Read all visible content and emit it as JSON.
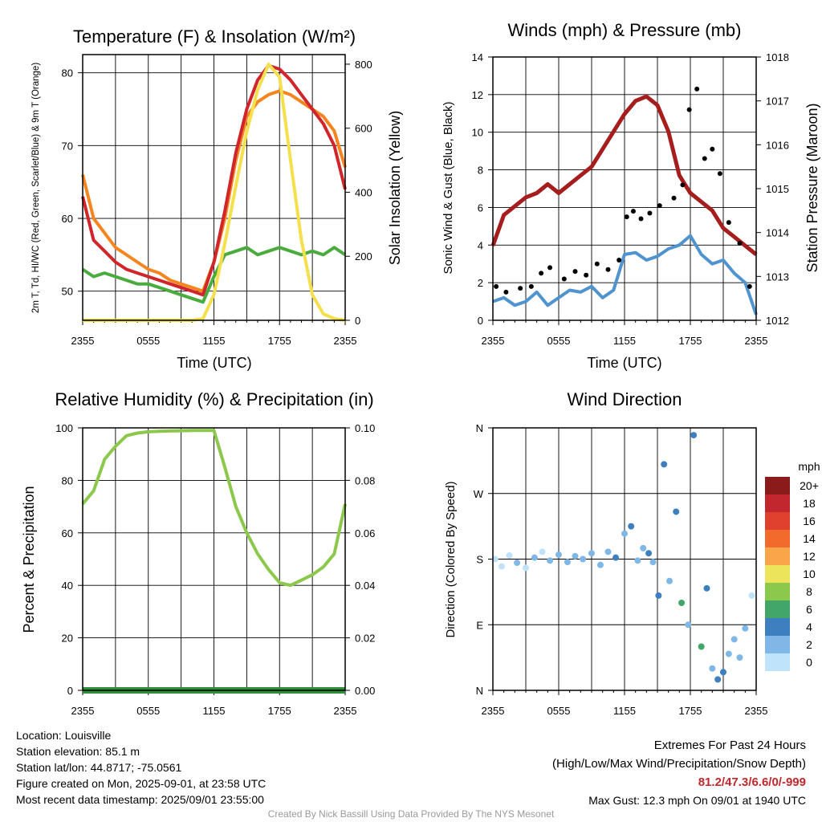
{
  "chart_data": [
    {
      "type": "line",
      "title": "Temperature (F) & Insolation (W/m²)",
      "xlabel": "Time (UTC)",
      "ylabel_left": "2m T, Td, HI/WC (Red, Green, Scarlet/Blue) & 9m T (Orange)",
      "ylabel_right": "Solar Insolation (Yellow)",
      "x_ticks": [
        "2355",
        "0555",
        "1155",
        "1755",
        "2355"
      ],
      "ylim_left": [
        46,
        82.5
      ],
      "ylim_right": [
        0,
        830
      ],
      "y_ticks_left": [
        50,
        60,
        70,
        80
      ],
      "y_ticks_right": [
        0,
        200,
        400,
        600,
        800
      ],
      "x_hours": [
        0,
        1,
        2,
        3,
        4,
        5,
        6,
        7,
        8,
        9,
        10,
        11,
        12,
        13,
        14,
        15,
        16,
        17,
        18,
        19,
        20,
        21,
        22,
        23,
        24
      ],
      "series": [
        {
          "axis": "left",
          "color": "#f5851f",
          "values": [
            66,
            60,
            58,
            56,
            55,
            54,
            53,
            52.5,
            51.5,
            51,
            50.5,
            50,
            54,
            60,
            68,
            74,
            76,
            77,
            77.5,
            77,
            76,
            75,
            74,
            72,
            67
          ]
        },
        {
          "axis": "left",
          "color": "#d0252b",
          "values": [
            63,
            57,
            55.5,
            54,
            53,
            52.5,
            52,
            51.5,
            51,
            50.5,
            50,
            49.5,
            54,
            61,
            69,
            75,
            79,
            81,
            80.5,
            79,
            77,
            75,
            73,
            70,
            64
          ]
        },
        {
          "axis": "left",
          "color": "#4aac3f",
          "values": [
            53,
            52,
            52.5,
            52,
            51.5,
            51,
            51,
            50.5,
            50,
            49.5,
            49,
            48.5,
            52,
            55,
            55.5,
            56,
            55,
            55.5,
            56,
            55.5,
            55,
            55.5,
            55,
            56,
            55
          ]
        },
        {
          "axis": "right",
          "color": "#f4e04d",
          "values": [
            0,
            0,
            0,
            0,
            0,
            0,
            0,
            0,
            0,
            0,
            0,
            5,
            80,
            240,
            420,
            590,
            720,
            800,
            760,
            500,
            250,
            80,
            20,
            5,
            0
          ]
        }
      ]
    },
    {
      "type": "line",
      "title": "Winds (mph) & Pressure (mb)",
      "xlabel": "Time (UTC)",
      "ylabel_left": "Sonic Wind & Gust (Blue, Black)",
      "ylabel_right": "Station Pressure (Maroon)",
      "x_ticks": [
        "2355",
        "0555",
        "1155",
        "1755",
        "2355"
      ],
      "ylim_left": [
        0,
        14
      ],
      "ylim_right": [
        1012,
        1018
      ],
      "y_ticks_left": [
        0,
        2,
        4,
        6,
        8,
        10,
        12,
        14
      ],
      "y_ticks_right": [
        1012,
        1013,
        1014,
        1015,
        1016,
        1017,
        1018
      ],
      "x_hours": [
        0,
        1,
        2,
        3,
        4,
        5,
        6,
        7,
        8,
        9,
        10,
        11,
        12,
        13,
        14,
        15,
        16,
        17,
        18,
        19,
        20,
        21,
        22,
        23,
        24
      ],
      "series": [
        {
          "axis": "left",
          "color": "#4f93cf",
          "values": [
            1,
            1.2,
            0.8,
            1,
            1.5,
            0.8,
            1.2,
            1.6,
            1.5,
            1.8,
            1.2,
            1.6,
            3.5,
            3.6,
            3.2,
            3.4,
            3.8,
            4,
            4.5,
            3.5,
            3,
            3.2,
            2.5,
            2,
            0.3
          ]
        },
        {
          "axis": "right",
          "color": "#a51d1d",
          "values": [
            1013.7,
            1014.4,
            1014.6,
            1014.8,
            1014.9,
            1015.1,
            1014.9,
            1015.1,
            1015.3,
            1015.5,
            1015.9,
            1016.3,
            1016.7,
            1017.0,
            1017.1,
            1016.9,
            1016.3,
            1015.3,
            1014.9,
            1014.7,
            1014.5,
            1014.1,
            1013.9,
            1013.7,
            1013.5
          ]
        }
      ],
      "gusts": {
        "color": "#000000",
        "x_hours": [
          0.3,
          1.2,
          2.5,
          3.5,
          4.4,
          5.2,
          6.5,
          7.5,
          8.5,
          9.5,
          10.5,
          11.5,
          12.2,
          12.8,
          13.5,
          14.3,
          15.2,
          16.5,
          17.3,
          17.9,
          18.6,
          19.3,
          20,
          20.7,
          21.5,
          22.5,
          23.4
        ],
        "values": [
          1.8,
          1.5,
          1.7,
          1.8,
          2.5,
          2.8,
          2.2,
          2.6,
          2.4,
          3,
          2.7,
          3.2,
          5.5,
          5.8,
          5.4,
          5.7,
          6.1,
          6.5,
          7.2,
          11.2,
          12.3,
          8.6,
          9.1,
          7.8,
          5.2,
          4.1,
          1.8
        ]
      }
    },
    {
      "type": "line",
      "title": "Relative Humidity (%) & Precipitation (in)",
      "ylabel_left": "Percent & Precipitation",
      "x_ticks": [
        "2355",
        "0555",
        "1155",
        "1755",
        "2355"
      ],
      "ylim_left": [
        0,
        100
      ],
      "ylim_right": [
        0,
        0.1
      ],
      "y_ticks_left": [
        0,
        20,
        40,
        60,
        80,
        100
      ],
      "y_ticks_right": [
        "0.00",
        "0.02",
        "0.04",
        "0.06",
        "0.08",
        "0.10"
      ],
      "x_hours": [
        0,
        1,
        2,
        3,
        4,
        5,
        6,
        7,
        8,
        9,
        10,
        11,
        12,
        13,
        14,
        15,
        16,
        17,
        18,
        19,
        20,
        21,
        22,
        23,
        24
      ],
      "series": [
        {
          "axis": "left",
          "color": "#8cc84b",
          "values": [
            71,
            76,
            88,
            93,
            97,
            98,
            98.5,
            98.7,
            98.8,
            98.9,
            99,
            99,
            99,
            85,
            70,
            60,
            52,
            46,
            41,
            40,
            42,
            44,
            47,
            52,
            71
          ]
        },
        {
          "axis": "right",
          "color": "#2d8f3a",
          "values": [
            0,
            0,
            0,
            0,
            0,
            0,
            0,
            0,
            0,
            0,
            0,
            0,
            0,
            0,
            0,
            0,
            0,
            0,
            0,
            0,
            0,
            0,
            0,
            0,
            0
          ]
        }
      ]
    },
    {
      "type": "scatter",
      "title": "Wind Direction",
      "ylabel_left": "Direction (Colored By Speed)",
      "x_ticks": [
        "2355",
        "0555",
        "1155",
        "1755",
        "2355"
      ],
      "y_ticks_left": [
        "N",
        "E",
        "S",
        "W",
        "N"
      ],
      "ylim_left": [
        0,
        360
      ],
      "legend_title": "mph",
      "legend": [
        {
          "label": "20+",
          "color": "#8b1a1a"
        },
        {
          "label": "18",
          "color": "#c1272d"
        },
        {
          "label": "16",
          "color": "#e0412f"
        },
        {
          "label": "14",
          "color": "#f26b2d"
        },
        {
          "label": "12",
          "color": "#f9a64a"
        },
        {
          "label": "10",
          "color": "#ece55c"
        },
        {
          "label": "8",
          "color": "#8cc84b"
        },
        {
          "label": "6",
          "color": "#41a667"
        },
        {
          "label": "4",
          "color": "#3d7fbf"
        },
        {
          "label": "2",
          "color": "#7fb8e6"
        },
        {
          "label": "0",
          "color": "#bfe3fa"
        }
      ],
      "points_x_hours": [
        0.2,
        0.8,
        1.5,
        2.2,
        3,
        3.8,
        4.5,
        5.2,
        6,
        6.8,
        7.5,
        8.2,
        9,
        9.8,
        10.5,
        11.2,
        12,
        12.6,
        13.2,
        13.7,
        14.2,
        14.6,
        15.1,
        15.6,
        16.1,
        16.7,
        17.2,
        17.8,
        18.3,
        19,
        19.5,
        20,
        20.5,
        21,
        21.5,
        22,
        22.5,
        23,
        23.6
      ],
      "points_direction": [
        180,
        170,
        185,
        175,
        168,
        182,
        190,
        178,
        186,
        176,
        184,
        180,
        188,
        172,
        190,
        182,
        215,
        225,
        178,
        195,
        188,
        176,
        130,
        310,
        150,
        245,
        120,
        90,
        350,
        60,
        140,
        30,
        15,
        25,
        50,
        70,
        45,
        85,
        130
      ],
      "points_speed": [
        1,
        1,
        1,
        2,
        1,
        2,
        1,
        2,
        2,
        3,
        2,
        3,
        3,
        2,
        3,
        4,
        3,
        4,
        2,
        3,
        4,
        3,
        5,
        4,
        3,
        5,
        6,
        3,
        4,
        6,
        5,
        3,
        4,
        5,
        3,
        3,
        2,
        2,
        1
      ]
    }
  ],
  "footer": {
    "location": "Location: Louisville",
    "elevation": "Station elevation: 85.1 m",
    "latlon": "Station lat/lon: 44.8717; -75.0561",
    "created": "Figure created on Mon, 2025-09-01, at 23:58 UTC",
    "recent": "Most recent data timestamp: 2025/09/01 23:55:00",
    "extremes_title": "Extremes For Past 24 Hours",
    "extremes_desc": "(High/Low/Max Wind/Precipitation/Snow Depth)",
    "extremes_values": "81.2/47.3/6.6/0/-999",
    "max_gust": "Max Gust: 12.3 mph On 09/01 at 1940 UTC",
    "credit": "Created By Nick Bassill Using Data Provided By The NYS Mesonet"
  }
}
